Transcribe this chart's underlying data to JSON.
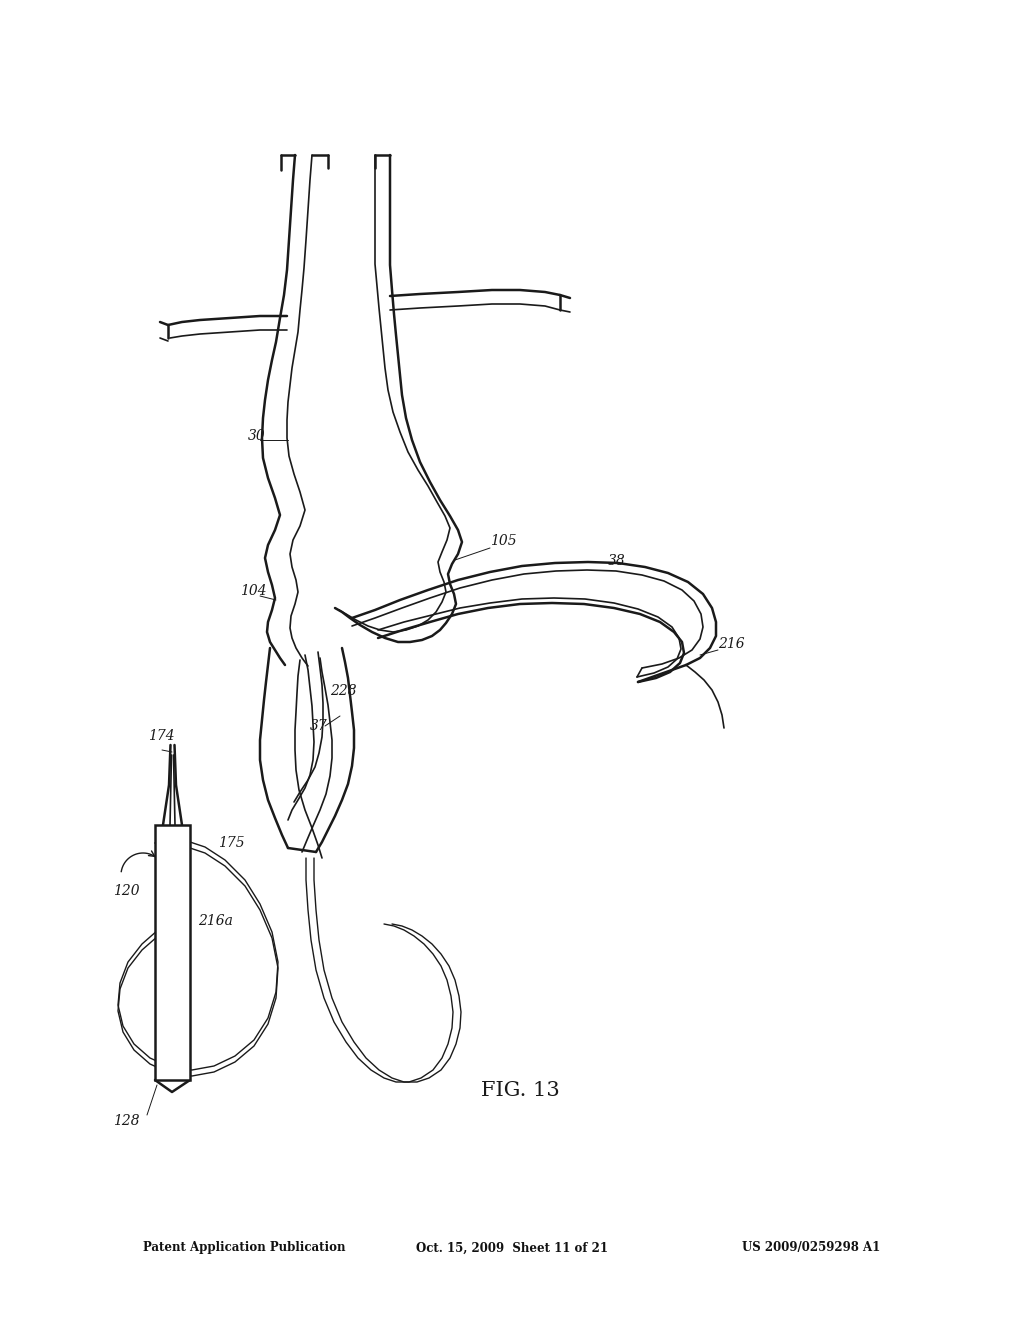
{
  "bg_color": "#ffffff",
  "line_color": "#1a1a1a",
  "fig_width": 10.24,
  "fig_height": 13.2,
  "header_left": "Patent Application Publication",
  "header_mid": "Oct. 15, 2009  Sheet 11 of 21",
  "header_right": "US 2009/0259298 A1",
  "figure_label": "FIG. 13"
}
